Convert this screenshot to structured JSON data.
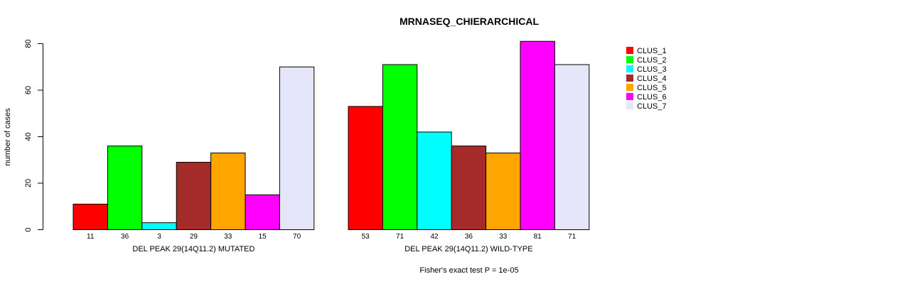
{
  "chart_data": {
    "type": "bar",
    "title": "MRNASEQ_CHIERARCHICAL",
    "ylabel": "number of cases",
    "ylim": [
      0,
      80
    ],
    "yticks": [
      0,
      20,
      40,
      60,
      80
    ],
    "footnote": "Fisher's exact test P = 1e-05",
    "legend": {
      "placement": "top-right",
      "entries": [
        {
          "name": "CLUS_1",
          "color": "#FF0000"
        },
        {
          "name": "CLUS_2",
          "color": "#00FF00"
        },
        {
          "name": "CLUS_3",
          "color": "#00FFFF"
        },
        {
          "name": "CLUS_4",
          "color": "#A52A2A"
        },
        {
          "name": "CLUS_5",
          "color": "#FFA500"
        },
        {
          "name": "CLUS_6",
          "color": "#FF00FF"
        },
        {
          "name": "CLUS_7",
          "color": "#E6E6FA"
        }
      ]
    },
    "groups": [
      {
        "label": "DEL PEAK 29(14Q11.2) MUTATED",
        "values": [
          11,
          36,
          3,
          29,
          33,
          15,
          70
        ]
      },
      {
        "label": "DEL PEAK 29(14Q11.2) WILD-TYPE",
        "values": [
          53,
          71,
          42,
          36,
          33,
          81,
          71
        ]
      }
    ]
  }
}
